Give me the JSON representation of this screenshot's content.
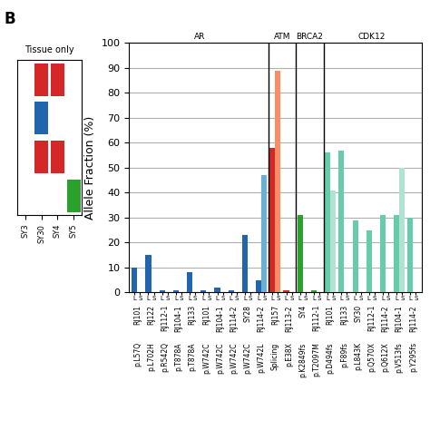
{
  "chart_data": [
    {
      "type": "bar",
      "panel_label": "B",
      "ylabel": "Allele Fraction (%)",
      "categories": [
        "p.L57Q",
        "p.L702H",
        "p.R542Q",
        "p.T878A",
        "p.T878A",
        "p.W742C",
        "p.W742C",
        "p.W742C",
        "p.W742C",
        "p.W742L",
        "Splicing",
        "p.E38X",
        "p.K2849fs",
        "p.T2097M",
        "p.D494fs",
        "p.F89fs",
        "p.L843K",
        "p.Q570X",
        "p.Q612X",
        "p.V513fs",
        "p.Y295fs"
      ],
      "sample_labels": [
        "RJ101",
        "RJ122",
        "RJ112-1",
        "RJ104-1",
        "RJ133",
        "RJ101",
        "RJ104-1",
        "RJ114-2",
        "SY28",
        "RJ114-2",
        "RJ157",
        "RJ113-2",
        "SY4",
        "RJ112-1",
        "RJ101",
        "RJ133",
        "SY30",
        "RJ112-1",
        "RJ114-2",
        "RJ104-1",
        "RJ114-2"
      ],
      "groups": [
        "AR",
        "AR",
        "AR",
        "AR",
        "AR",
        "AR",
        "AR",
        "AR",
        "AR",
        "AR",
        "ATM",
        "ATM",
        "BRCA2",
        "BRCA2",
        "CDK12",
        "CDK12",
        "CDK12",
        "CDK12",
        "CDK12",
        "CDK12",
        "CDK12"
      ],
      "series": [
        {
          "name": "L",
          "values": [
            10,
            15,
            1,
            1,
            8,
            1,
            2,
            1,
            23,
            5,
            58,
            1,
            31,
            1,
            56,
            57,
            29,
            25,
            31,
            31,
            30
          ],
          "colors": [
            "#2166ac",
            "#2166ac",
            "#2166ac",
            "#2166ac",
            "#2166ac",
            "#2166ac",
            "#2166ac",
            "#2166ac",
            "#2166ac",
            "#2166ac",
            "#d62728",
            "#d62728",
            "#2ca02c",
            "#2ca02c",
            "#66cdaa",
            "#66cdaa",
            "#66cdaa",
            "#66cdaa",
            "#66cdaa",
            "#66cdaa",
            "#66cdaa"
          ]
        },
        {
          "name": "S",
          "values": [
            0,
            0,
            0,
            0,
            0,
            0,
            0,
            0,
            0,
            47,
            89,
            0,
            0,
            0,
            41,
            0,
            0,
            0,
            0,
            50,
            0
          ],
          "colors": [
            "#6baed6",
            "#6baed6",
            "#6baed6",
            "#6baed6",
            "#6baed6",
            "#6baed6",
            "#6baed6",
            "#6baed6",
            "#6baed6",
            "#6baed6",
            "#fc8d62",
            "#fc8d62",
            "#74c476",
            "#74c476",
            "#b2e2d0",
            "#b2e2d0",
            "#b2e2d0",
            "#b2e2d0",
            "#b2e2d0",
            "#b2e2d0",
            "#b2e2d0"
          ]
        }
      ],
      "ylim": [
        0,
        100
      ],
      "yticks": [
        0,
        10,
        20,
        30,
        40,
        50,
        60,
        70,
        80,
        90,
        100
      ],
      "grid": true
    },
    {
      "type": "tile",
      "title": "Tissue only",
      "categories": [
        "SY3",
        "SY30",
        "SY4",
        "SY5"
      ],
      "cells": [
        [
          null,
          "#d62728",
          "#d62728",
          null
        ],
        [
          null,
          "#2166ac",
          null,
          null
        ],
        [
          null,
          "#d62728",
          "#d62728",
          null
        ],
        [
          null,
          null,
          null,
          "#2ca02c"
        ]
      ],
      "tick_labels": "x"
    }
  ]
}
